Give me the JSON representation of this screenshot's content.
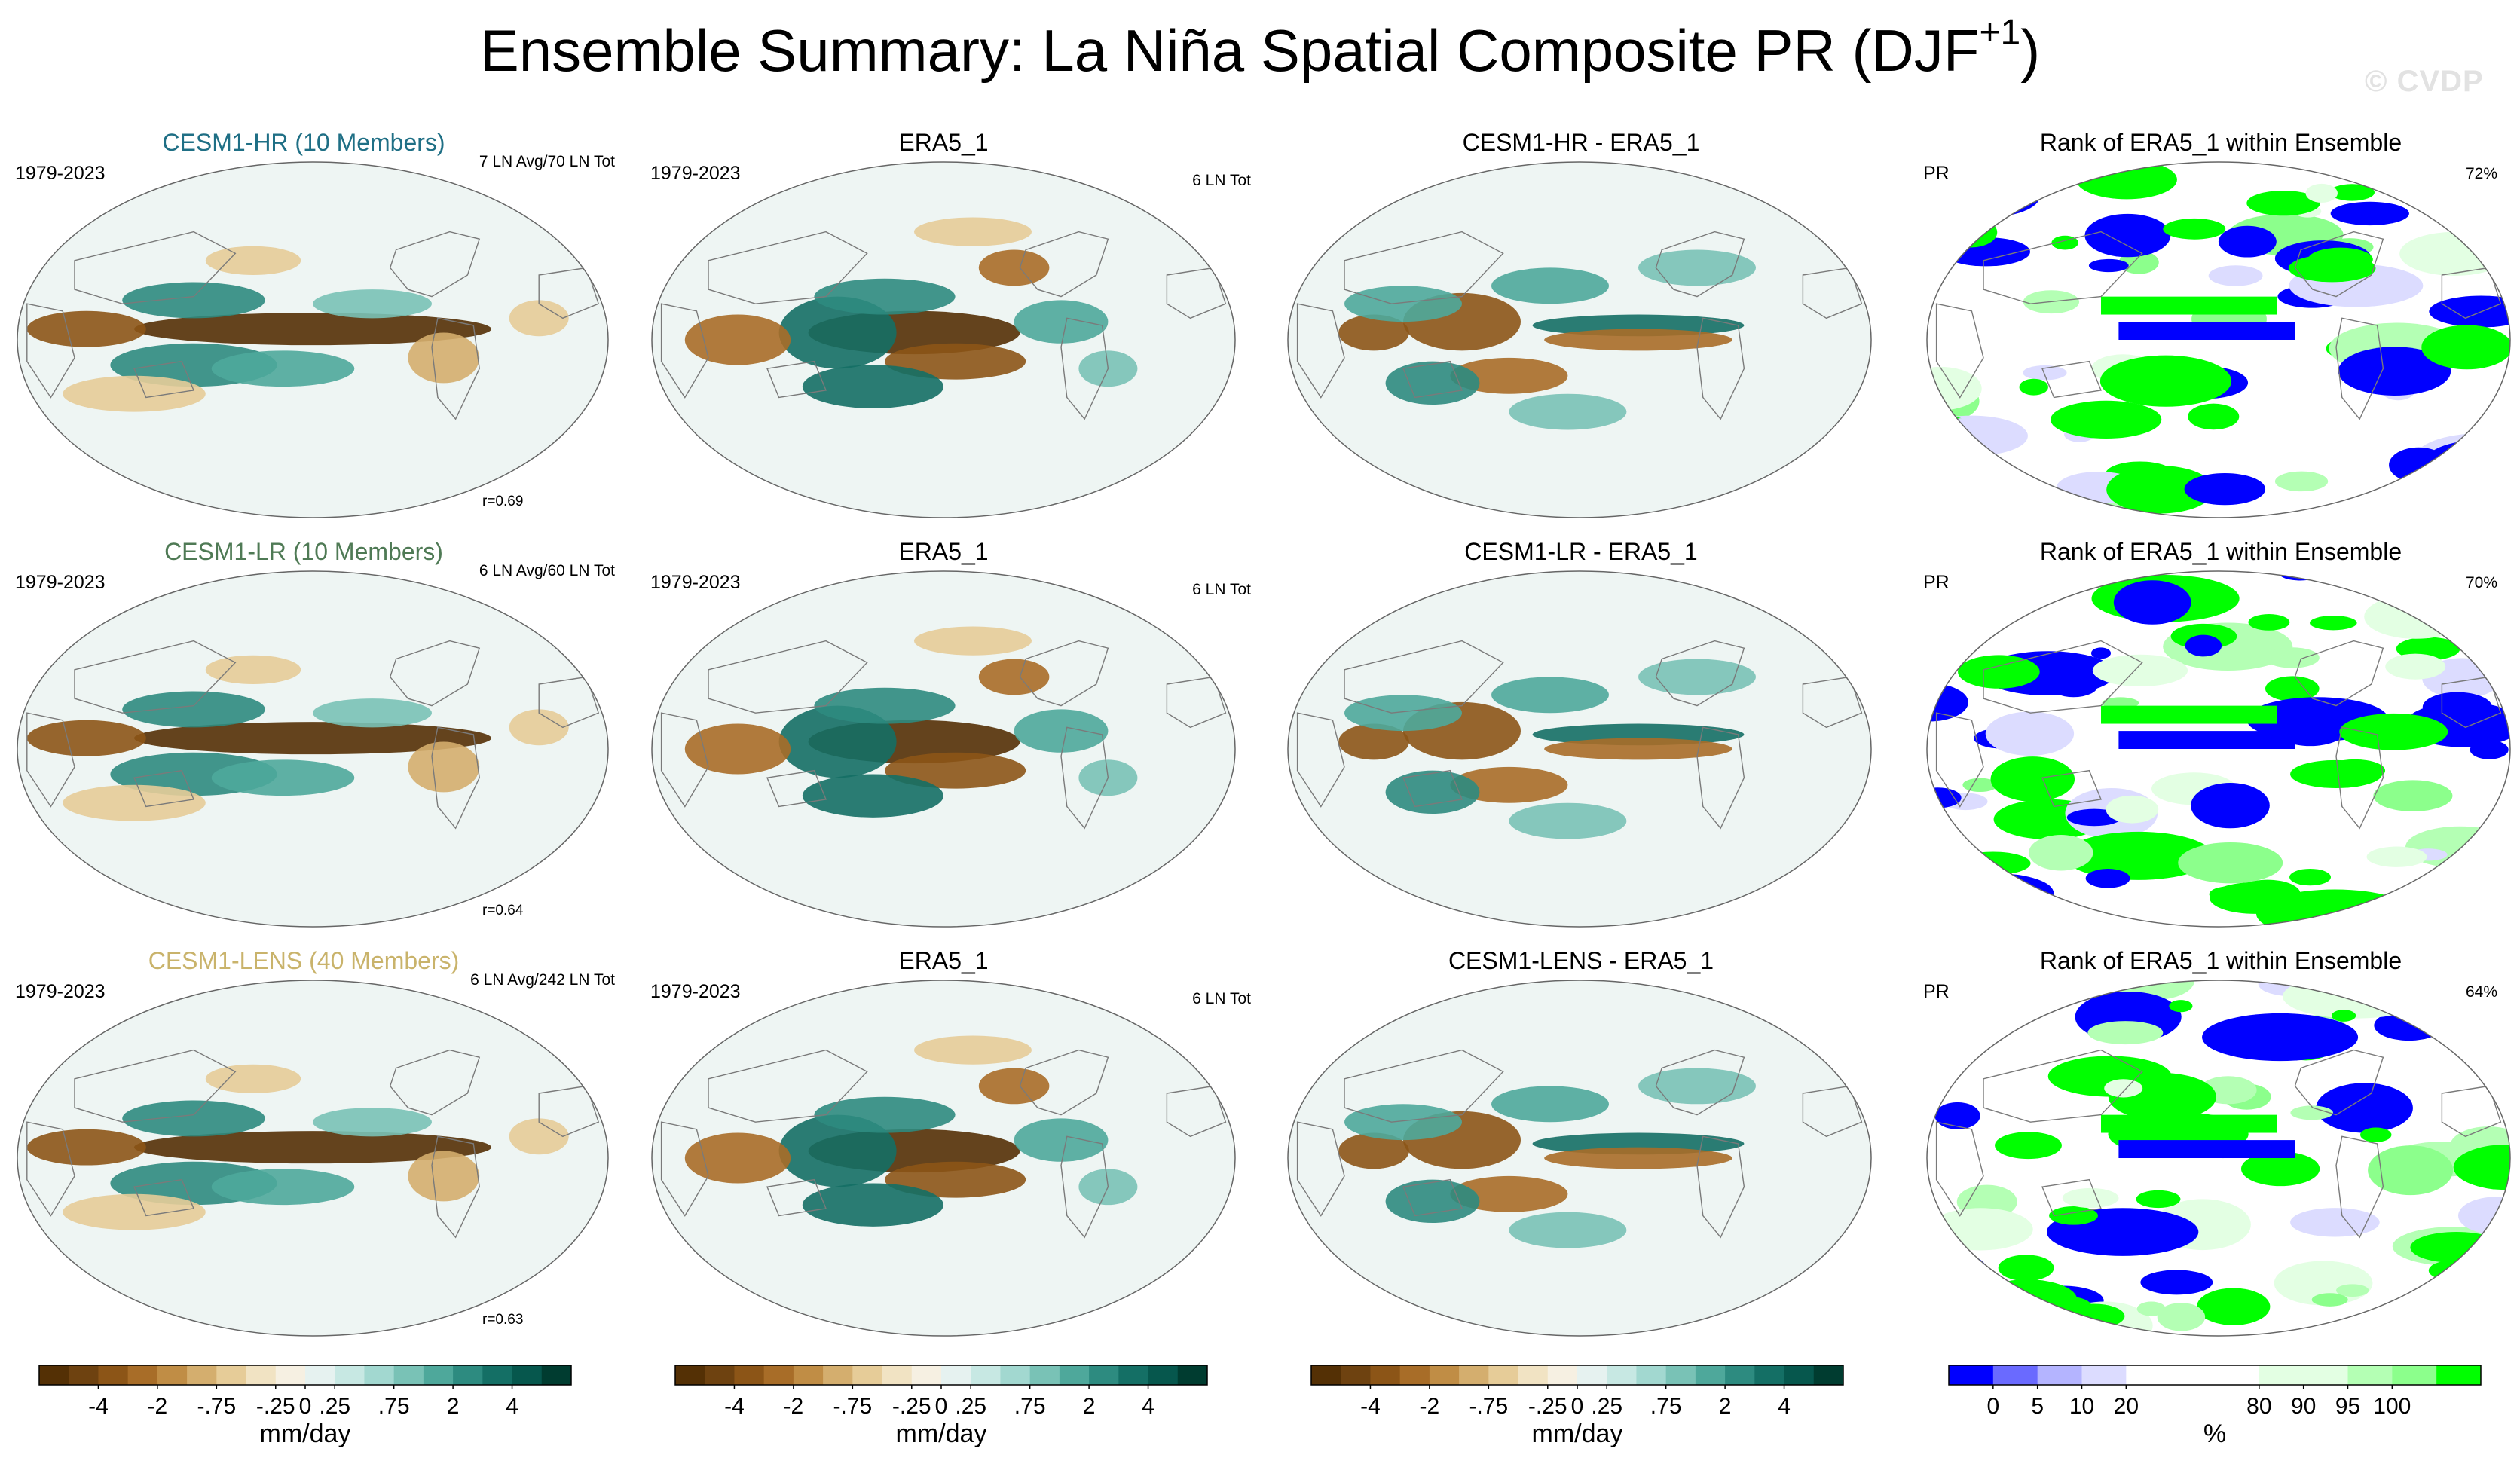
{
  "title_main": "Ensemble Summary: La Niña Spatial Composite PR (DJF",
  "title_sup": "+1",
  "title_end": ")",
  "watermark": "© CVDP",
  "rows": [
    {
      "col1": {
        "title": "CESM1-HR (10 Members)",
        "title_color": "#1f6f85",
        "left": "1979-2023",
        "right": "7 LN Avg/70 LN Tot",
        "corr": "r=0.69"
      },
      "col2": {
        "title": "ERA5_1",
        "left": "1979-2023",
        "right": "6 LN Tot"
      },
      "col3": {
        "title": "CESM1-HR - ERA5_1"
      },
      "col4": {
        "title": "Rank of ERA5_1 within Ensemble",
        "left": "PR",
        "right": "72%"
      }
    },
    {
      "col1": {
        "title": "CESM1-LR (10 Members)",
        "title_color": "#4f7a55",
        "left": "1979-2023",
        "right": "6 LN Avg/60 LN Tot",
        "corr": "r=0.64"
      },
      "col2": {
        "title": "ERA5_1",
        "left": "1979-2023",
        "right": "6 LN Tot"
      },
      "col3": {
        "title": "CESM1-LR - ERA5_1"
      },
      "col4": {
        "title": "Rank of ERA5_1 within Ensemble",
        "left": "PR",
        "right": "70%"
      }
    },
    {
      "col1": {
        "title": "CESM1-LENS (40 Members)",
        "title_color": "#c9b36b",
        "left": "1979-2023",
        "right": "6 LN Avg/242 LN Tot",
        "corr": "r=0.63"
      },
      "col2": {
        "title": "ERA5_1",
        "left": "1979-2023",
        "right": "6 LN Tot"
      },
      "col3": {
        "title": "CESM1-LENS - ERA5_1"
      },
      "col4": {
        "title": "Rank of ERA5_1 within Ensemble",
        "left": "PR",
        "right": "64%"
      }
    }
  ],
  "chart_data": [
    {
      "type": "heatmap",
      "description_id": "precip-colorbar",
      "units": "mm/day",
      "tick_labels": [
        "-4",
        "-2",
        "-.75",
        "-.25",
        "0",
        ".25",
        ".75",
        "2",
        "4"
      ],
      "colors": [
        "#543005",
        "#6e4210",
        "#8c5517",
        "#a86d28",
        "#c08d45",
        "#d4ae6e",
        "#e6cc98",
        "#f1e3c3",
        "#f6f0e2",
        "#e6f2f0",
        "#c7e8e3",
        "#a2d8d0",
        "#79c2b6",
        "#4ea89b",
        "#2d8b80",
        "#146f65",
        "#06574d",
        "#003c30"
      ],
      "tick_boundaries": [
        2,
        4,
        6,
        8,
        9,
        10,
        12,
        14,
        16
      ]
    },
    {
      "type": "heatmap",
      "description_id": "rank-colorbar",
      "units": "%",
      "tick_labels": [
        "0",
        "5",
        "10",
        "20",
        "80",
        "90",
        "95",
        "100"
      ],
      "colors": [
        "#0000ff",
        "#6a6aff",
        "#b4b4ff",
        "#dcdcff",
        "#ffffff",
        "#ffffff",
        "#ffffff",
        "#e3ffe3",
        "#e3ffe3",
        "#b4ffb4",
        "#8cff8c",
        "#00ff00"
      ],
      "tick_boundaries": [
        1,
        2,
        3,
        4,
        7,
        8,
        9,
        10
      ]
    }
  ]
}
